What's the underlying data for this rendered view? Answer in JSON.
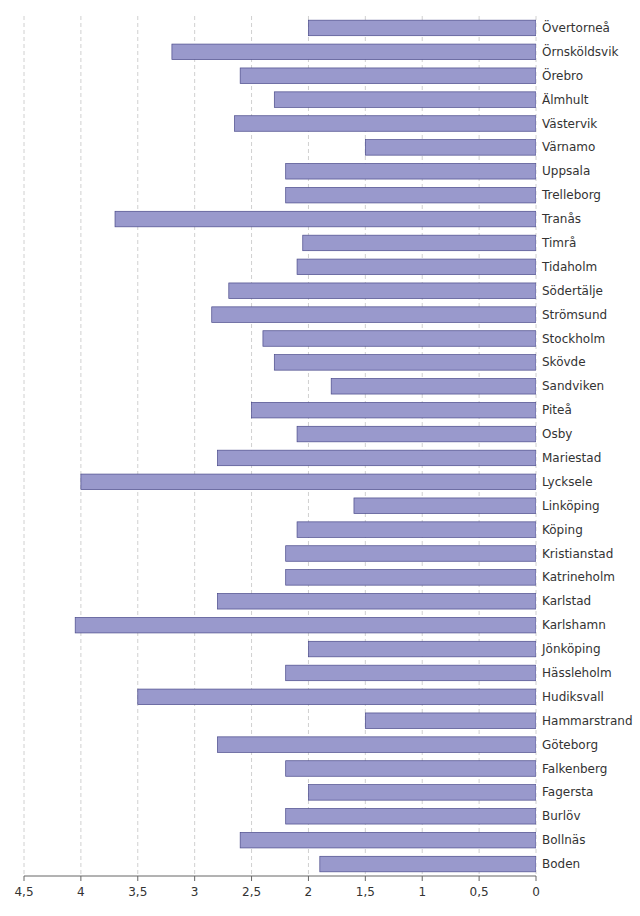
{
  "chart_data": {
    "type": "bar",
    "orientation": "horizontal",
    "categories": [
      "Övertorneå",
      "Örnsköldsvik",
      "Örebro",
      "Älmhult",
      "Västervik",
      "Värnamo",
      "Uppsala",
      "Trelleborg",
      "Tranås",
      "Timrå",
      "Tidaholm",
      "Södertälje",
      "Strömsund",
      "Stockholm",
      "Skövde",
      "Sandviken",
      "Piteå",
      "Osby",
      "Mariestad",
      "Lycksele",
      "Linköping",
      "Köping",
      "Kristianstad",
      "Katrineholm",
      "Karlstad",
      "Karlshamn",
      "Jönköping",
      "Hässleholm",
      "Hudiksvall",
      "Hammarstrand",
      "Göteborg",
      "Falkenberg",
      "Fagersta",
      "Burlöv",
      "Bollnäs",
      "Boden"
    ],
    "values": [
      2.0,
      3.2,
      2.6,
      2.3,
      2.65,
      1.5,
      2.2,
      2.2,
      3.7,
      2.05,
      2.1,
      2.7,
      2.85,
      2.4,
      2.3,
      1.8,
      2.5,
      2.1,
      2.8,
      4.0,
      1.6,
      2.1,
      2.2,
      2.2,
      2.8,
      4.05,
      2.0,
      2.2,
      3.5,
      1.5,
      2.8,
      2.2,
      2.0,
      2.2,
      2.6,
      1.9
    ],
    "color": "#9999cc",
    "xlim": [
      4.5,
      0.0
    ],
    "xticks": [
      {
        "value": 4.5,
        "label": "4,5"
      },
      4,
      {
        "value": 3.5,
        "label": "3,5"
      },
      3,
      {
        "value": 2.5,
        "label": "2,5"
      },
      2,
      {
        "value": 1.5,
        "label": "1,5"
      },
      1,
      {
        "value": 0.5,
        "label": "0,5"
      },
      0
    ],
    "grid": true
  }
}
